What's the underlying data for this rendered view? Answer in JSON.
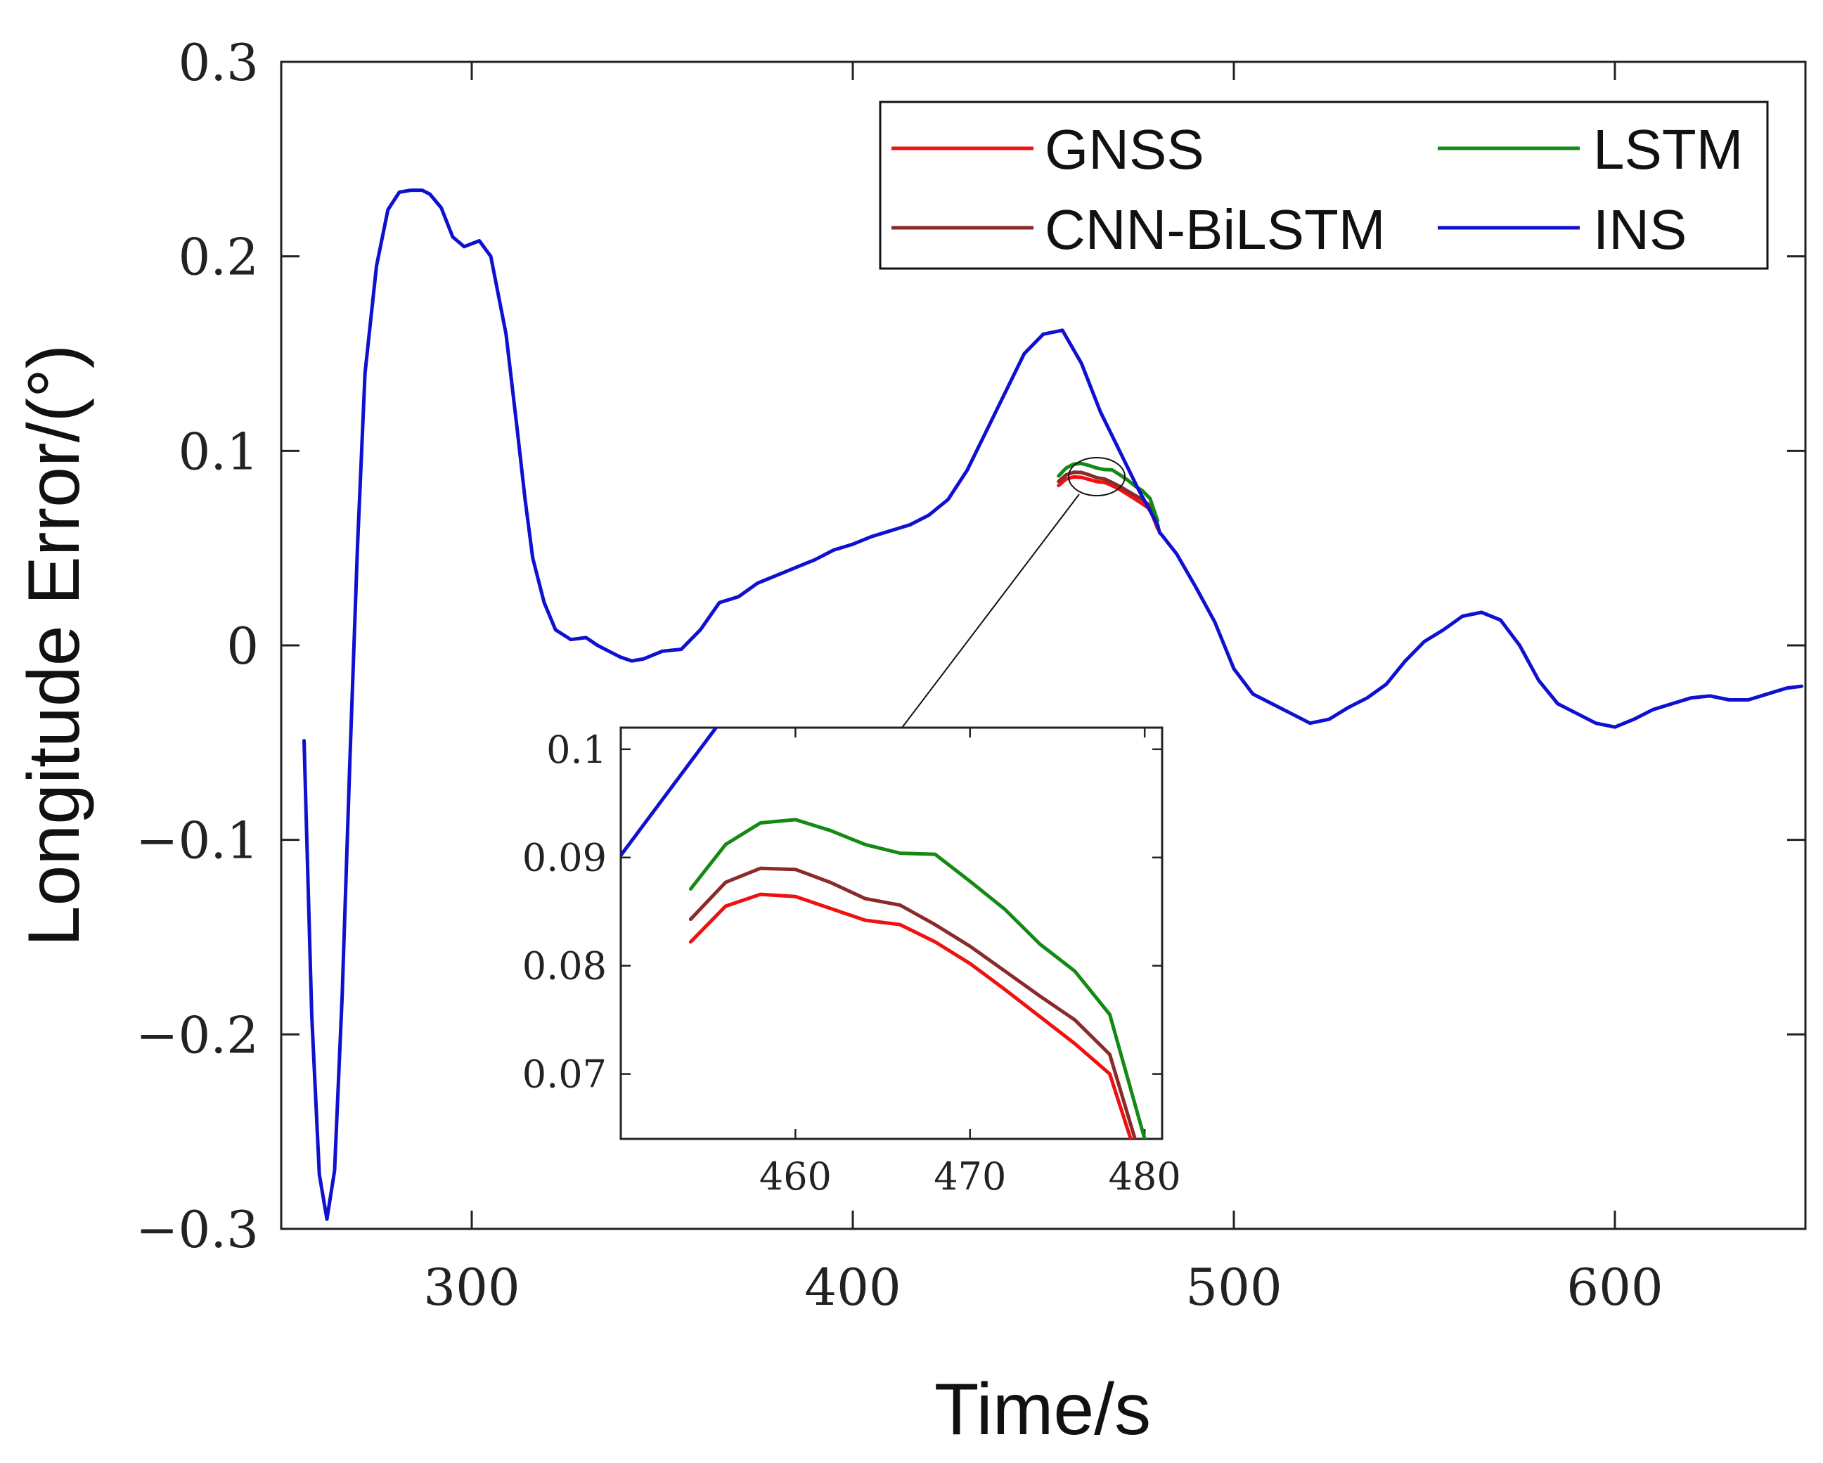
{
  "chart_data": {
    "type": "line",
    "xlabel": "Time/s",
    "ylabel": "Longitude Error/(°)",
    "xlim": [
      250,
      650
    ],
    "ylim": [
      -0.3,
      0.3
    ],
    "xticks": [
      300,
      400,
      500,
      600
    ],
    "xtick_labels": [
      "300",
      "400",
      "500",
      "600"
    ],
    "yticks": [
      -0.3,
      -0.2,
      -0.1,
      0,
      0.1,
      0.2,
      0.3
    ],
    "ytick_labels": [
      "−0.3",
      "−0.2",
      "−0.1",
      "0",
      "0.1",
      "0.2",
      "0.3"
    ],
    "grid": false,
    "legend_position": "top-right",
    "series": [
      {
        "name": "INS",
        "color": "#1010d0",
        "x": [
          256,
          258,
          260,
          262,
          264,
          266,
          268,
          270,
          272,
          275,
          278,
          281,
          284,
          287,
          289,
          292,
          295,
          298,
          302,
          305,
          309,
          312,
          314,
          316,
          319,
          322,
          326,
          330,
          333,
          336,
          339,
          342,
          345,
          350,
          355,
          360,
          365,
          370,
          375,
          380,
          385,
          390,
          395,
          400,
          405,
          410,
          415,
          420,
          425,
          430,
          435,
          440,
          445,
          450,
          455,
          460,
          465,
          470,
          475,
          480,
          480.5,
          481,
          485,
          490,
          495,
          500,
          505,
          510,
          515,
          520,
          525,
          530,
          535,
          540,
          545,
          550,
          555,
          560,
          565,
          570,
          575,
          580,
          585,
          590,
          595,
          600,
          605,
          610,
          615,
          620,
          625,
          630,
          635,
          640,
          645,
          649
        ],
        "y": [
          -0.049,
          -0.19,
          -0.272,
          -0.295,
          -0.27,
          -0.18,
          -0.06,
          0.05,
          0.14,
          0.195,
          0.224,
          0.233,
          0.234,
          0.234,
          0.232,
          0.225,
          0.21,
          0.205,
          0.208,
          0.2,
          0.16,
          0.11,
          0.075,
          0.045,
          0.022,
          0.008,
          0.003,
          0.004,
          0.0,
          -0.003,
          -0.006,
          -0.008,
          -0.007,
          -0.003,
          -0.002,
          0.008,
          0.022,
          0.025,
          0.032,
          0.036,
          0.04,
          0.044,
          0.049,
          0.052,
          0.056,
          0.059,
          0.062,
          0.067,
          0.075,
          0.09,
          0.11,
          0.13,
          0.15,
          0.16,
          0.162,
          0.145,
          0.12,
          0.1,
          0.08,
          0.062,
          0.058,
          0.057,
          0.047,
          0.03,
          0.012,
          -0.012,
          -0.025,
          -0.03,
          -0.035,
          -0.04,
          -0.038,
          -0.032,
          -0.027,
          -0.02,
          -0.008,
          0.002,
          0.008,
          0.015,
          0.017,
          0.013,
          0.0,
          -0.018,
          -0.03,
          -0.035,
          -0.04,
          -0.042,
          -0.038,
          -0.033,
          -0.03,
          -0.027,
          -0.026,
          -0.028,
          -0.028,
          -0.025,
          -0.022,
          -0.021
        ]
      },
      {
        "name": "GNSS",
        "color": "#f01010",
        "x": [
          454,
          456,
          458,
          460,
          462,
          464,
          466,
          468,
          470,
          472,
          474,
          476,
          478,
          480
        ],
        "y": [
          0.0822,
          0.0855,
          0.0866,
          0.0864,
          0.0853,
          0.0842,
          0.0838,
          0.0822,
          0.0802,
          0.0778,
          0.0753,
          0.0728,
          0.07,
          0.06
        ]
      },
      {
        "name": "LSTM",
        "color": "#138a13",
        "x": [
          454,
          456,
          458,
          460,
          462,
          464,
          466,
          468,
          470,
          472,
          474,
          476,
          478,
          480
        ],
        "y": [
          0.0871,
          0.0912,
          0.0932,
          0.0935,
          0.0925,
          0.0912,
          0.0904,
          0.0903,
          0.0878,
          0.0852,
          0.082,
          0.0795,
          0.0755,
          0.064
        ]
      },
      {
        "name": "CNN-BiLSTM",
        "color": "#8a2a2a",
        "x": [
          454,
          456,
          458,
          460,
          462,
          464,
          466,
          468,
          470,
          472,
          474,
          476,
          478,
          480
        ],
        "y": [
          0.0843,
          0.0877,
          0.089,
          0.0889,
          0.0877,
          0.0862,
          0.0856,
          0.0838,
          0.0818,
          0.0795,
          0.0772,
          0.075,
          0.0718,
          0.061
        ]
      }
    ],
    "inset": {
      "xlim": [
        450,
        481
      ],
      "ylim": [
        0.064,
        0.102
      ],
      "xticks": [
        460,
        470,
        480
      ],
      "xtick_labels": [
        "460",
        "470",
        "480"
      ],
      "yticks": [
        0.07,
        0.08,
        0.09,
        0.1
      ],
      "ytick_labels": [
        "0.07",
        "0.08",
        "0.09",
        "0.1"
      ],
      "ins_line": {
        "x": [
          450,
          458
        ],
        "y": [
          0.0902,
          0.1075
        ]
      }
    }
  }
}
